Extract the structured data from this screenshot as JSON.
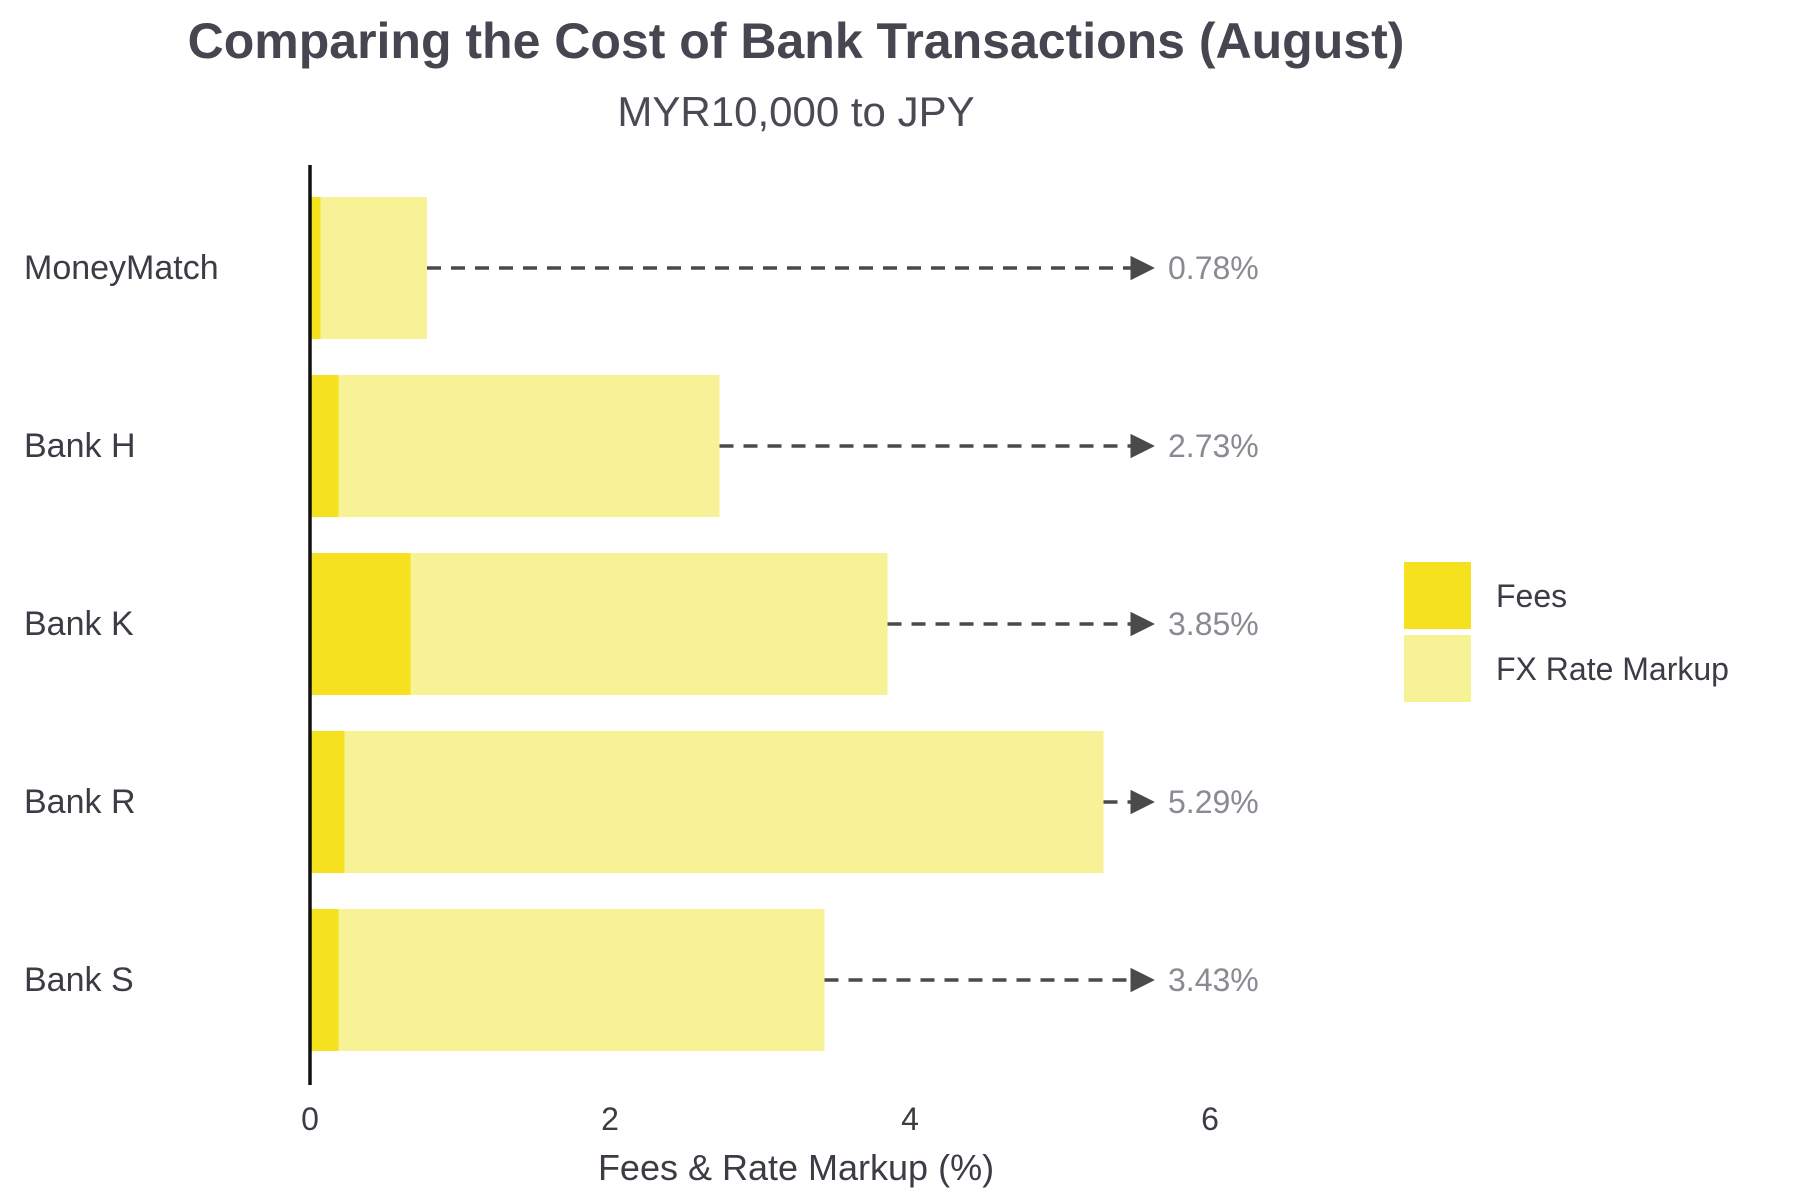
{
  "chart_data": {
    "type": "bar",
    "orientation": "horizontal",
    "stacked": true,
    "title": "Comparing the Cost of Bank Transactions (August)",
    "subtitle": "MYR10,000 to JPY",
    "xlabel": "Fees & Rate Markup (%)",
    "ylabel": "",
    "xlim": [
      0,
      6
    ],
    "xticks": [
      0,
      2,
      4,
      6
    ],
    "grid": false,
    "legend_position": "right",
    "categories": [
      "MoneyMatch",
      "Bank H",
      "Bank K",
      "Bank R",
      "Bank S"
    ],
    "series": [
      {
        "name": "Fees",
        "color": "#F5E11E",
        "values": [
          0.07,
          0.19,
          0.67,
          0.23,
          0.19
        ]
      },
      {
        "name": "FX Rate Markup",
        "color": "#F7F295",
        "values": [
          0.71,
          2.54,
          3.18,
          5.06,
          3.24
        ]
      }
    ],
    "totals": [
      "0.78%",
      "2.73%",
      "3.85%",
      "5.29%",
      "3.43%"
    ],
    "total_values": [
      0.78,
      2.73,
      3.85,
      5.29,
      3.43
    ],
    "annotation_arrow_target": 5.6,
    "annotation_style": "dashed-arrow"
  }
}
